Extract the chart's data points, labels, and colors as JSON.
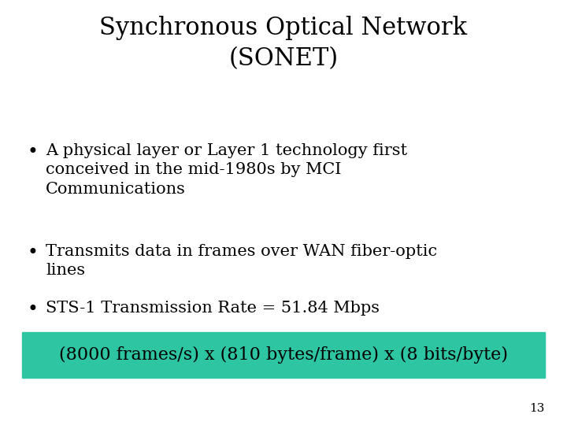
{
  "title": "Synchronous Optical Network\n(SONET)",
  "bullets": [
    "A physical layer or Layer 1 technology first\nconceived in the mid-1980s by MCI\nCommunications",
    "Transmits data in frames over WAN fiber-optic\nlines",
    "STS-1 Transmission Rate = 51.84 Mbps"
  ],
  "highlight_text": "(8000 frames/s) x (810 bytes/frame) x (8 bits/byte)",
  "highlight_bg": "#2DC5A2",
  "background_color": "#ffffff",
  "text_color": "#000000",
  "slide_number": "13",
  "title_fontsize": 22,
  "bullet_fontsize": 15,
  "highlight_fontsize": 16
}
